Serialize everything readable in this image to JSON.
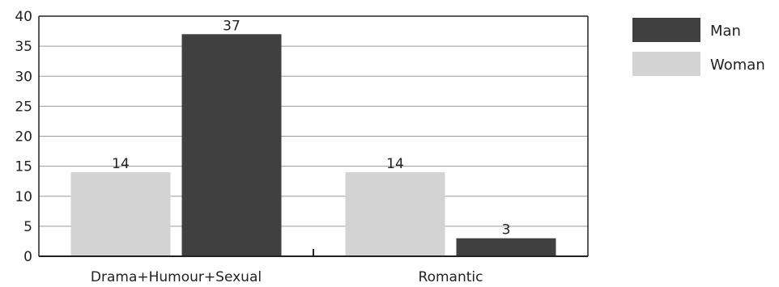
{
  "chart_data": {
    "type": "bar",
    "title": "",
    "xlabel": "",
    "ylabel": "",
    "categories": [
      "Drama+Humour+Sexual",
      "Romantic"
    ],
    "series": [
      {
        "name": "Woman",
        "values": [
          14,
          14
        ],
        "color": "#d3d3d3"
      },
      {
        "name": "Man",
        "values": [
          37,
          3
        ],
        "color": "#404040"
      }
    ],
    "ylim": [
      0,
      40
    ],
    "yticks": [
      0,
      5,
      10,
      15,
      20,
      25,
      30,
      35,
      40
    ],
    "grid": true,
    "legend": {
      "placement": "right",
      "order": [
        "Man",
        "Woman"
      ]
    }
  }
}
